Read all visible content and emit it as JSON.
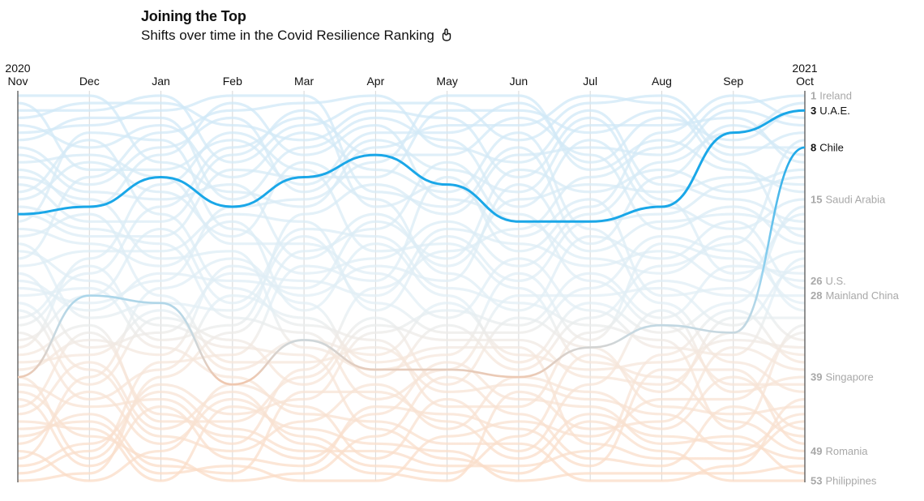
{
  "header": {
    "title": "Joining the Top",
    "subtitle": "Shifts over time in the Covid Resilience Ranking"
  },
  "chart_data": {
    "type": "line",
    "subtype": "bump",
    "title": "Joining the Top",
    "subtitle": "Shifts over time in the Covid Resilience Ranking",
    "x": [
      "Nov",
      "Dec",
      "Jan",
      "Feb",
      "Mar",
      "Apr",
      "May",
      "Jun",
      "Jul",
      "Aug",
      "Sep",
      "Oct"
    ],
    "year_labels": [
      {
        "index": 0,
        "label": "2020"
      },
      {
        "index": 11,
        "label": "2021"
      }
    ],
    "ylim": [
      1,
      53
    ],
    "y_reversed": true,
    "series_count": 53,
    "highlight_color": "#1aa7e8",
    "background_color_top": "#cfe8f7",
    "background_color_bottom": "#fbdcc6",
    "series": [
      {
        "name": "U.A.E.",
        "rank": [
          17,
          16,
          12,
          16,
          12,
          9,
          13,
          18,
          18,
          16,
          6,
          3
        ],
        "highlight": true
      },
      {
        "name": "Chile",
        "rank": [
          39,
          28,
          29,
          40,
          34,
          38,
          38,
          39,
          35,
          32,
          33,
          8
        ],
        "highlight": "faded"
      }
    ],
    "right_labels": [
      {
        "rank": "1",
        "name": "Ireland",
        "emphasis": false
      },
      {
        "rank": "3",
        "name": "U.A.E.",
        "emphasis": true
      },
      {
        "rank": "8",
        "name": "Chile",
        "emphasis": true
      },
      {
        "rank": "15",
        "name": "Saudi Arabia",
        "emphasis": false
      },
      {
        "rank": "26",
        "name": "U.S.",
        "emphasis": false
      },
      {
        "rank": "28",
        "name": "Mainland China",
        "emphasis": false
      },
      {
        "rank": "39",
        "name": "Singapore",
        "emphasis": false
      },
      {
        "rank": "49",
        "name": "Romania",
        "emphasis": false
      },
      {
        "rank": "53",
        "name": "Philippines",
        "emphasis": false
      }
    ]
  }
}
